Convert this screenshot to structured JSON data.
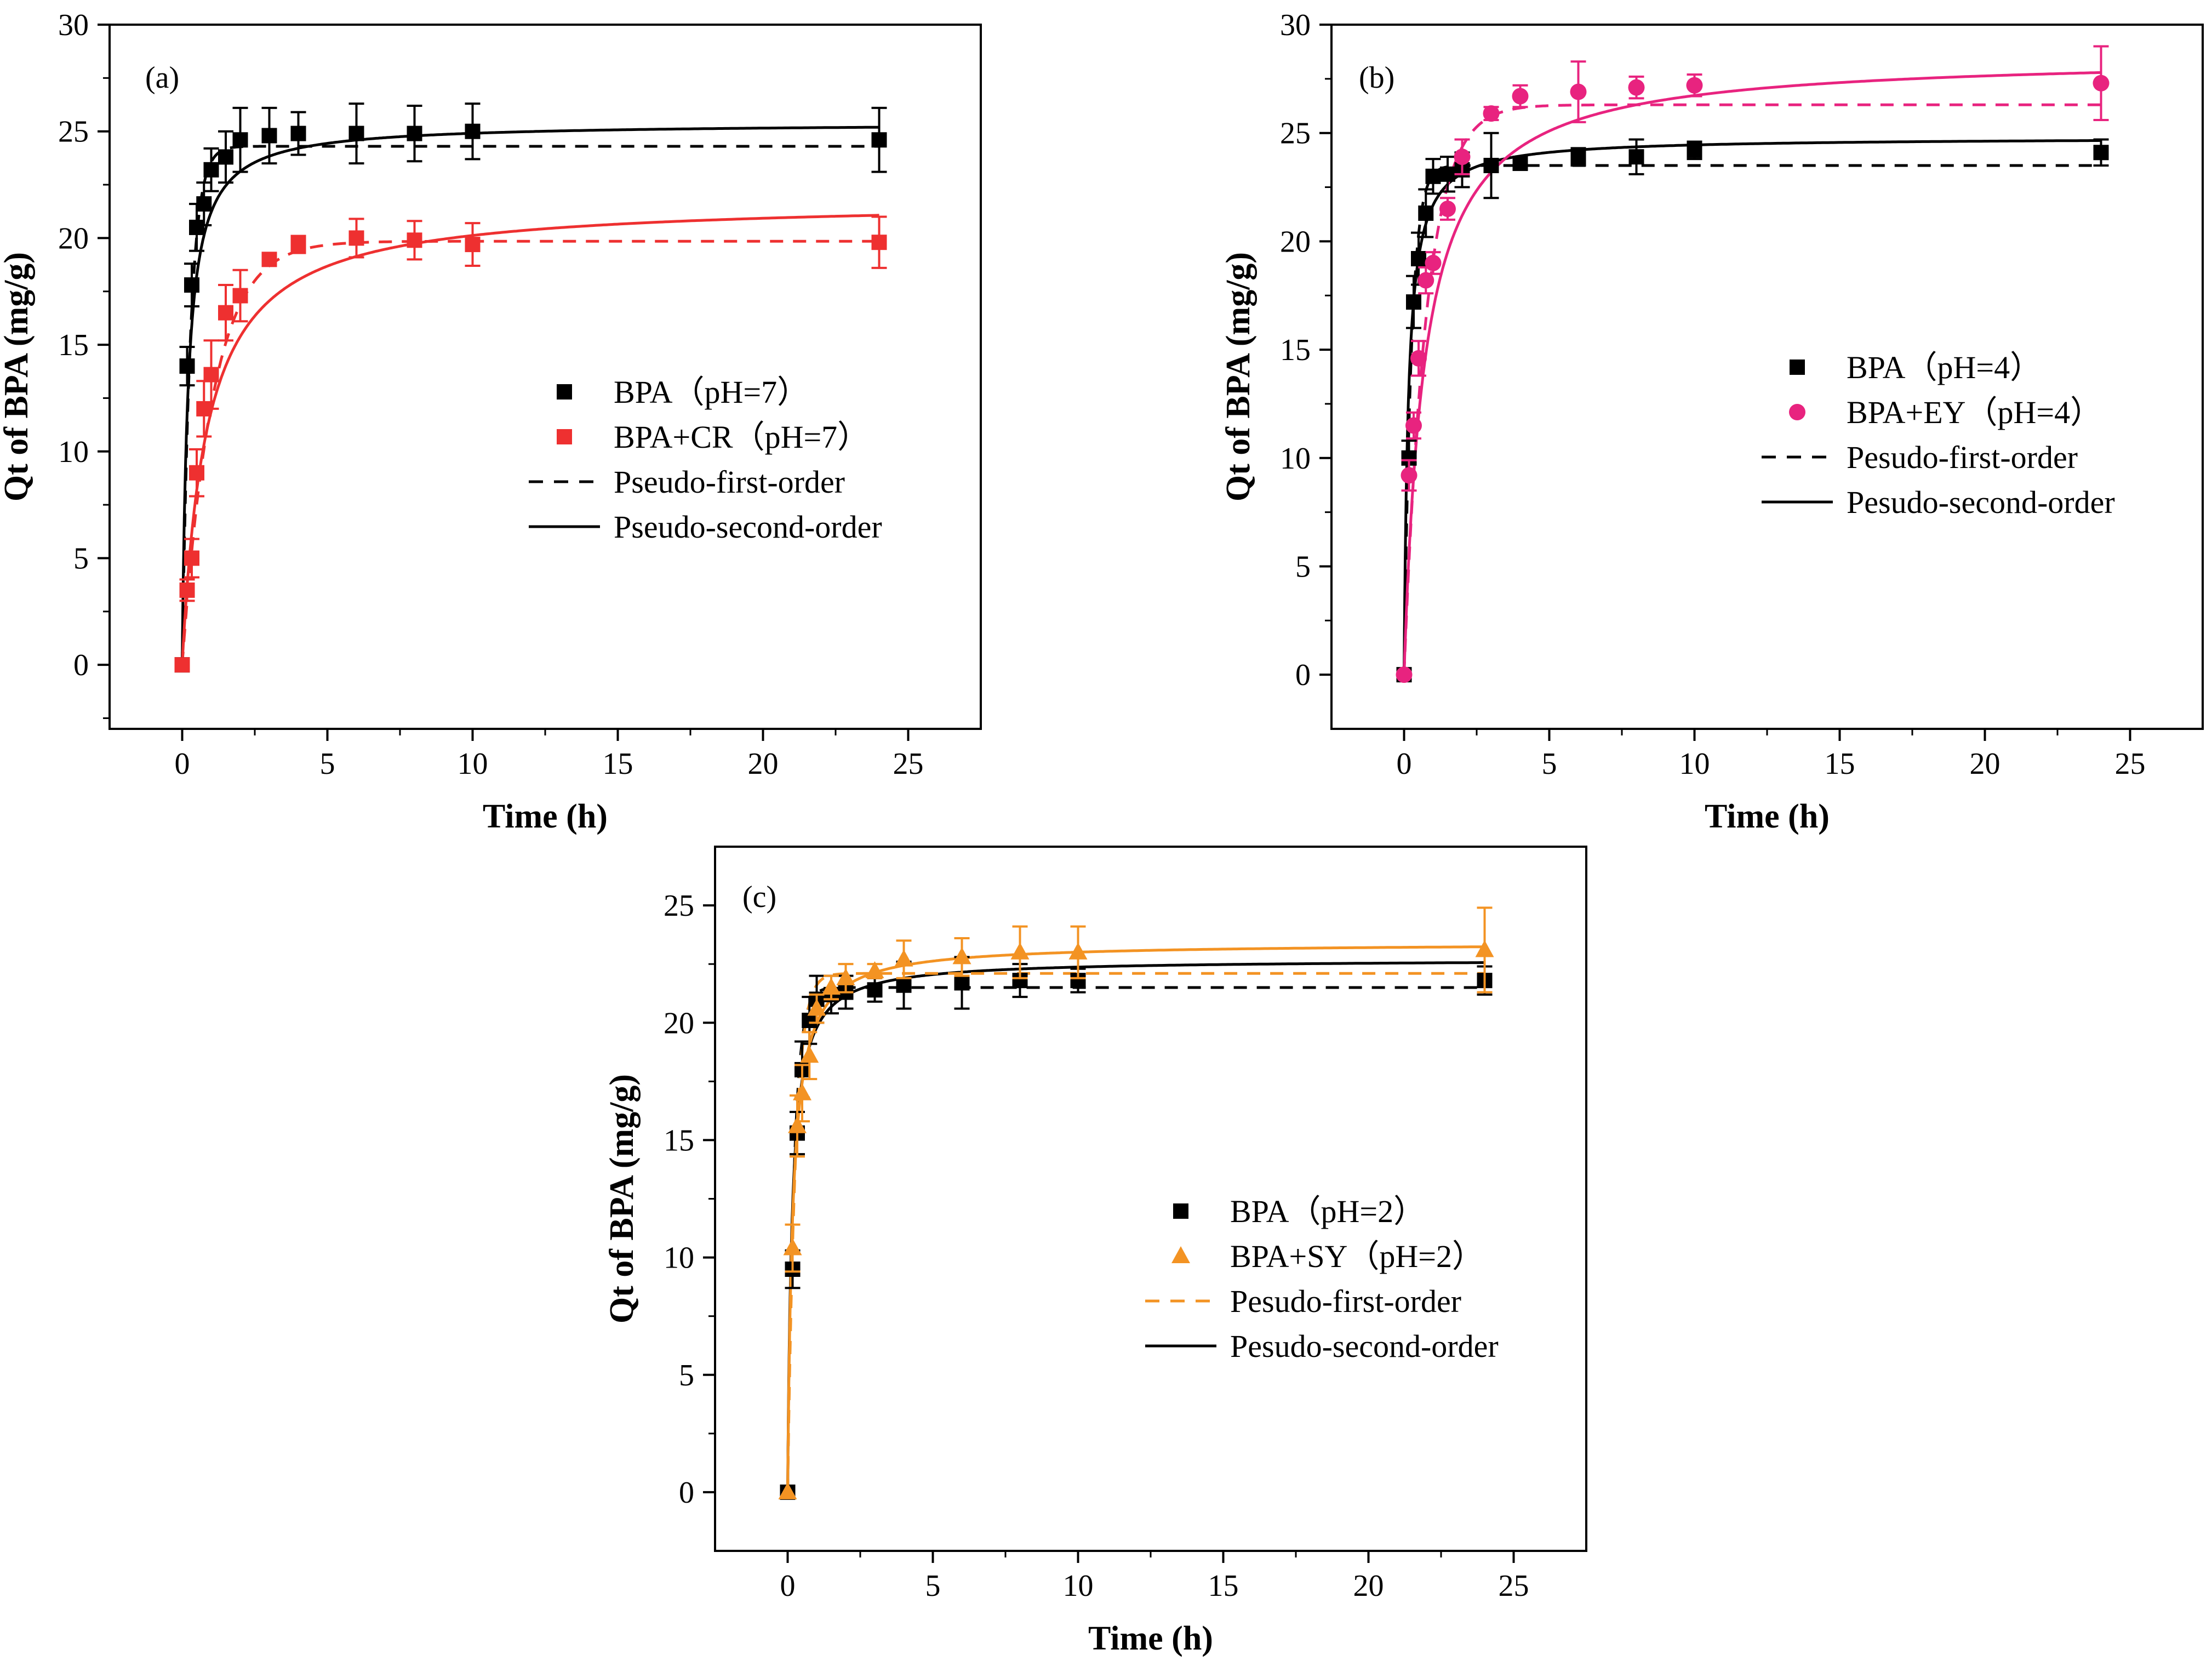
{
  "chart_data": [
    {
      "type": "scatter",
      "panel_label": "(a)",
      "xlabel": "Time (h)",
      "ylabel": "Qt of BPA (mg/g)",
      "xlim": [
        -2.5,
        27.5
      ],
      "ylim": [
        -3,
        30
      ],
      "xticks": [
        0,
        5,
        10,
        15,
        20,
        25
      ],
      "yticks": [
        0,
        5,
        10,
        15,
        20,
        25,
        30
      ],
      "legend_position": "center-right",
      "series": [
        {
          "name": "BPA（pH=7）",
          "color": "#000000",
          "marker": "square",
          "x": [
            0,
            0.17,
            0.33,
            0.5,
            0.75,
            1,
            1.5,
            2,
            3,
            4,
            6,
            8,
            10,
            24
          ],
          "y": [
            0,
            14.0,
            17.8,
            20.5,
            21.6,
            23.2,
            23.8,
            24.6,
            24.8,
            24.9,
            24.9,
            24.9,
            25.0,
            24.6
          ],
          "err": [
            0,
            0.9,
            1.0,
            1.1,
            1.0,
            1.0,
            1.2,
            1.5,
            1.3,
            1.0,
            1.4,
            1.3,
            1.3,
            1.5
          ]
        },
        {
          "name": "BPA+CR（pH=7）",
          "color": "#ee3030",
          "marker": "square",
          "x": [
            0,
            0.17,
            0.33,
            0.5,
            0.75,
            1,
            1.5,
            2,
            3,
            4,
            6,
            8,
            10,
            24
          ],
          "y": [
            0,
            3.5,
            5.0,
            9.0,
            12.0,
            13.6,
            16.5,
            17.3,
            19.0,
            19.7,
            20.0,
            19.9,
            19.7,
            19.8
          ],
          "err": [
            0,
            0.5,
            0.9,
            1.1,
            1.3,
            1.6,
            1.3,
            1.2,
            0.3,
            0.4,
            0.9,
            0.9,
            1.0,
            1.2
          ]
        }
      ],
      "fits": [
        {
          "kind": "pfo",
          "color": "#000000",
          "dashed": true,
          "qe": 24.3,
          "k": 3.5
        },
        {
          "kind": "pso",
          "color": "#000000",
          "dashed": false,
          "qe": 25.4,
          "k": 0.2
        },
        {
          "kind": "pfo",
          "color": "#ee3030",
          "dashed": true,
          "qe": 19.85,
          "k": 0.95
        },
        {
          "kind": "pso",
          "color": "#ee3030",
          "dashed": false,
          "qe": 21.8,
          "k": 0.055
        }
      ],
      "legend": [
        {
          "text": "BPA（pH=7）",
          "type": "marker",
          "color": "#000000",
          "shape": "square"
        },
        {
          "text": "BPA+CR（pH=7）",
          "type": "marker",
          "color": "#ee3030",
          "shape": "square"
        },
        {
          "text": "Pseudo-first-order",
          "type": "line",
          "color": "#000000",
          "dashed": true
        },
        {
          "text": "Pseudo-second-order",
          "type": "line",
          "color": "#000000",
          "dashed": false
        }
      ]
    },
    {
      "type": "scatter",
      "panel_label": "(b)",
      "xlabel": "Time (h)",
      "ylabel": "Qt of BPA (mg/g)",
      "xlim": [
        -2.5,
        27.5
      ],
      "ylim": [
        -2.5,
        30
      ],
      "xticks": [
        0,
        5,
        10,
        15,
        20,
        25
      ],
      "yticks": [
        0,
        5,
        10,
        15,
        20,
        25,
        30
      ],
      "legend_position": "center-right",
      "series": [
        {
          "name": "BPA（pH=4）",
          "color": "#000000",
          "marker": "square",
          "x": [
            0,
            0.17,
            0.33,
            0.5,
            0.75,
            1,
            1.5,
            2,
            3,
            4,
            6,
            8,
            10,
            24
          ],
          "y": [
            0,
            10.0,
            17.2,
            19.2,
            21.3,
            23.0,
            23.1,
            23.3,
            23.5,
            23.6,
            23.9,
            23.9,
            24.2,
            24.1
          ],
          "err": [
            0,
            0.8,
            1.2,
            1.2,
            1.1,
            0.8,
            0.8,
            0.8,
            1.5,
            0.3,
            0.4,
            0.8,
            0.4,
            0.6
          ]
        },
        {
          "name": "BPA+EY（pH=4）",
          "color": "#e8237f",
          "marker": "circle",
          "x": [
            0,
            0.17,
            0.33,
            0.5,
            0.75,
            1,
            1.5,
            2,
            3,
            4,
            6,
            8,
            10,
            24
          ],
          "y": [
            0,
            9.2,
            11.5,
            14.6,
            18.2,
            19.0,
            21.5,
            23.9,
            25.9,
            26.7,
            26.9,
            27.1,
            27.2,
            27.3
          ],
          "err": [
            0,
            0.7,
            0.6,
            0.8,
            0.6,
            0.5,
            0.5,
            0.8,
            0.3,
            0.5,
            1.4,
            0.5,
            0.5,
            1.7
          ]
        }
      ],
      "fits": [
        {
          "kind": "pfo",
          "color": "#000000",
          "dashed": true,
          "qe": 23.5,
          "k": 4.0
        },
        {
          "kind": "pso",
          "color": "#000000",
          "dashed": false,
          "qe": 24.8,
          "k": 0.28
        },
        {
          "kind": "pfo",
          "color": "#e8237f",
          "dashed": true,
          "qe": 26.3,
          "k": 1.3
        },
        {
          "kind": "pso",
          "color": "#e8237f",
          "dashed": false,
          "qe": 28.6,
          "k": 0.05
        }
      ],
      "legend": [
        {
          "text": "BPA（pH=4）",
          "type": "marker",
          "color": "#000000",
          "shape": "square"
        },
        {
          "text": "BPA+EY（pH=4）",
          "type": "marker",
          "color": "#e8237f",
          "shape": "circle"
        },
        {
          "text": "Pesudo-first-order",
          "type": "line",
          "color": "#000000",
          "dashed": true
        },
        {
          "text": "Pesudo-second-order",
          "type": "line",
          "color": "#000000",
          "dashed": false
        }
      ]
    },
    {
      "type": "scatter",
      "panel_label": "(c)",
      "xlabel": "Time (h)",
      "ylabel": "Qt of BPA (mg/g)",
      "xlim": [
        -2.5,
        27.5
      ],
      "ylim": [
        -2.5,
        27.5
      ],
      "xticks": [
        0,
        5,
        10,
        15,
        20,
        25
      ],
      "yticks": [
        0,
        5,
        10,
        15,
        20,
        25
      ],
      "legend_position": "center-right",
      "series": [
        {
          "name": "BPA（pH=2）",
          "color": "#000000",
          "marker": "square",
          "x": [
            0,
            0.17,
            0.33,
            0.5,
            0.75,
            1,
            1.5,
            2,
            3,
            4,
            6,
            8,
            10,
            24
          ],
          "y": [
            0,
            9.5,
            15.3,
            18.0,
            20.1,
            21.0,
            21.2,
            21.3,
            21.4,
            21.6,
            21.7,
            21.8,
            21.8,
            21.8
          ],
          "err": [
            0,
            0.8,
            0.9,
            1.2,
            1.0,
            1.0,
            0.8,
            0.7,
            0.5,
            1.0,
            1.1,
            0.7,
            0.5,
            0.6
          ]
        },
        {
          "name": "BPA+SY（pH=2）",
          "color": "#f39323",
          "marker": "triangle",
          "x": [
            0,
            0.17,
            0.33,
            0.5,
            0.75,
            1,
            1.5,
            2,
            3,
            4,
            6,
            8,
            10,
            24
          ],
          "y": [
            0,
            10.4,
            15.6,
            17.0,
            18.6,
            20.6,
            21.5,
            21.9,
            22.2,
            22.7,
            22.8,
            23.0,
            23.0,
            23.1
          ],
          "err": [
            0,
            1.0,
            1.3,
            1.2,
            1.0,
            0.6,
            0.5,
            0.6,
            0.3,
            0.8,
            0.8,
            1.1,
            1.1,
            1.8
          ]
        }
      ],
      "fits": [
        {
          "kind": "pfo",
          "color": "#000000",
          "dashed": true,
          "qe": 21.5,
          "k": 4.5
        },
        {
          "kind": "pso",
          "color": "#000000",
          "dashed": false,
          "qe": 22.7,
          "k": 0.3
        },
        {
          "kind": "pfo",
          "color": "#f39323",
          "dashed": true,
          "qe": 22.1,
          "k": 3.8
        },
        {
          "kind": "pso",
          "color": "#f39323",
          "dashed": false,
          "qe": 23.4,
          "k": 0.25
        }
      ],
      "legend": [
        {
          "text": "BPA（pH=2）",
          "type": "marker",
          "color": "#000000",
          "shape": "square"
        },
        {
          "text": "BPA+SY（pH=2）",
          "type": "marker",
          "color": "#f39323",
          "shape": "triangle"
        },
        {
          "text": "Pesudo-first-order",
          "type": "line",
          "color": "#f39323",
          "dashed": true
        },
        {
          "text": "Pesudo-second-order",
          "type": "line",
          "color": "#000000",
          "dashed": false
        }
      ]
    }
  ]
}
